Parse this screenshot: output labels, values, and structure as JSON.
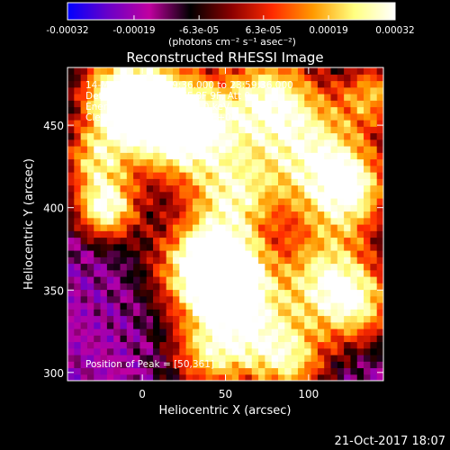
{
  "colorbar": {
    "tick_labels": [
      "-0.00032",
      "-0.00019",
      "-6.3e-05",
      "6.3e-05",
      "0.00019",
      "0.00032"
    ],
    "tick_values": [
      -0.00032,
      -0.00019,
      -6.3e-05,
      6.3e-05,
      0.00019,
      0.00032
    ],
    "range": [
      -0.00032,
      0.00032
    ],
    "unit_label": "(photons cm⁻² s⁻¹ asec⁻²)",
    "colors": [
      "#0000ff",
      "#6a00c8",
      "#c000a0",
      "#000000",
      "#8a0000",
      "#ff2a00",
      "#ff9a00",
      "#ffff80",
      "#ffffff"
    ]
  },
  "chart_data": {
    "type": "heatmap",
    "title": "Reconstructed RHESSI Image",
    "annotations": [
      "14-May-2015 23:49:36.000 to 23:59:36.000",
      "Detectors: 3F 5F 6F 7F 8F 9F, Att 0",
      "Energy Range: 25.0 - 50.0 keV",
      "Clean     Total counts: 1.61E+04"
    ],
    "peak_label": "Position of Peak = [50,361]",
    "peak": [
      50,
      361
    ],
    "xlabel": "Heliocentric X (arcsec)",
    "ylabel": "Heliocentric Y (arcsec)",
    "xlim": [
      -45,
      145
    ],
    "ylim": [
      295,
      485
    ],
    "xticks": [
      0,
      50,
      100
    ],
    "yticks": [
      300,
      350,
      400,
      450
    ],
    "sources": [
      {
        "x": 50,
        "y": 361,
        "level": 1.0,
        "width": 14
      },
      {
        "x": 35,
        "y": 365,
        "level": 0.85,
        "width": 22
      },
      {
        "x": -22,
        "y": 400,
        "level": 0.9,
        "width": 14
      },
      {
        "x": 5,
        "y": 460,
        "level": 0.75,
        "width": 24
      },
      {
        "x": 30,
        "y": 445,
        "level": 0.65,
        "width": 22
      },
      {
        "x": 100,
        "y": 435,
        "level": 0.7,
        "width": 28
      },
      {
        "x": 125,
        "y": 410,
        "level": 0.55,
        "width": 18
      },
      {
        "x": 110,
        "y": 360,
        "level": 0.55,
        "width": 22
      },
      {
        "x": 130,
        "y": 340,
        "level": 0.45,
        "width": 18
      },
      {
        "x": 65,
        "y": 330,
        "level": 0.55,
        "width": 22
      },
      {
        "x": -15,
        "y": 470,
        "level": 0.45,
        "width": 18
      },
      {
        "x": 75,
        "y": 470,
        "level": 0.5,
        "width": 20
      },
      {
        "x": 90,
        "y": 305,
        "level": 0.45,
        "width": 16
      },
      {
        "x": 40,
        "y": 310,
        "level": 0.35,
        "width": 18
      },
      {
        "x": -30,
        "y": 430,
        "level": 0.35,
        "width": 14
      },
      {
        "x": 55,
        "y": 405,
        "level": 0.4,
        "width": 18
      },
      {
        "x": 140,
        "y": 470,
        "level": 0.35,
        "width": 14
      }
    ],
    "background_level": -0.55,
    "grid": false
  },
  "footer": {
    "date": "21-Oct-2017 18:07"
  }
}
